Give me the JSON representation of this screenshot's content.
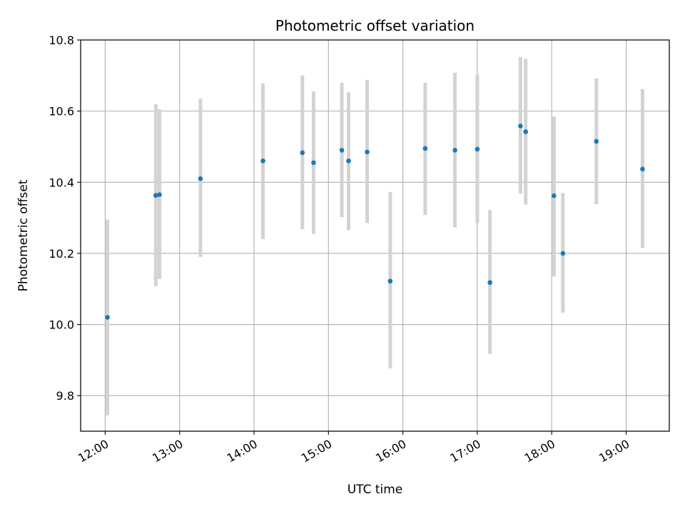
{
  "chart_data": {
    "type": "scatter",
    "title": "Photometric offset variation",
    "xlabel": "UTC time",
    "ylabel": "Photometric offset",
    "x_unit": "hours UTC",
    "xlim": [
      11.67,
      19.58
    ],
    "ylim": [
      9.7,
      10.8
    ],
    "x_ticks": [
      {
        "value": 12,
        "label": "12:00"
      },
      {
        "value": 13,
        "label": "13:00"
      },
      {
        "value": 14,
        "label": "14:00"
      },
      {
        "value": 15,
        "label": "15:00"
      },
      {
        "value": 16,
        "label": "16:00"
      },
      {
        "value": 17,
        "label": "17:00"
      },
      {
        "value": 18,
        "label": "18:00"
      },
      {
        "value": 19,
        "label": "19:00"
      }
    ],
    "y_ticks": [
      {
        "value": 9.8,
        "label": "9.8"
      },
      {
        "value": 10.0,
        "label": "10.0"
      },
      {
        "value": 10.2,
        "label": "10.2"
      },
      {
        "value": 10.4,
        "label": "10.4"
      },
      {
        "value": 10.6,
        "label": "10.6"
      },
      {
        "value": 10.8,
        "label": "10.8"
      }
    ],
    "grid": true,
    "colors": {
      "point": "#1f77b4",
      "errorbar": "#d3d3d3",
      "grid": "#b0b0b0"
    },
    "points": [
      {
        "x": 12.03,
        "y": 10.02,
        "ymin": 9.745,
        "ymax": 10.295
      },
      {
        "x": 12.68,
        "y": 10.363,
        "ymin": 10.108,
        "ymax": 10.62
      },
      {
        "x": 12.73,
        "y": 10.365,
        "ymin": 10.128,
        "ymax": 10.605
      },
      {
        "x": 13.28,
        "y": 10.41,
        "ymin": 10.19,
        "ymax": 10.635
      },
      {
        "x": 14.12,
        "y": 10.46,
        "ymin": 10.24,
        "ymax": 10.678
      },
      {
        "x": 14.65,
        "y": 10.483,
        "ymin": 10.268,
        "ymax": 10.7
      },
      {
        "x": 14.8,
        "y": 10.455,
        "ymin": 10.255,
        "ymax": 10.655
      },
      {
        "x": 15.18,
        "y": 10.49,
        "ymin": 10.302,
        "ymax": 10.68
      },
      {
        "x": 15.27,
        "y": 10.46,
        "ymin": 10.265,
        "ymax": 10.653
      },
      {
        "x": 15.52,
        "y": 10.485,
        "ymin": 10.285,
        "ymax": 10.688
      },
      {
        "x": 15.83,
        "y": 10.122,
        "ymin": 9.877,
        "ymax": 10.373
      },
      {
        "x": 16.3,
        "y": 10.495,
        "ymin": 10.308,
        "ymax": 10.68
      },
      {
        "x": 16.7,
        "y": 10.49,
        "ymin": 10.273,
        "ymax": 10.708
      },
      {
        "x": 17.0,
        "y": 10.493,
        "ymin": 10.285,
        "ymax": 10.703
      },
      {
        "x": 17.17,
        "y": 10.118,
        "ymin": 9.917,
        "ymax": 10.322
      },
      {
        "x": 17.58,
        "y": 10.558,
        "ymin": 10.368,
        "ymax": 10.752
      },
      {
        "x": 17.65,
        "y": 10.542,
        "ymin": 10.337,
        "ymax": 10.747
      },
      {
        "x": 18.03,
        "y": 10.362,
        "ymin": 10.135,
        "ymax": 10.585
      },
      {
        "x": 18.15,
        "y": 10.2,
        "ymin": 10.033,
        "ymax": 10.37
      },
      {
        "x": 18.6,
        "y": 10.515,
        "ymin": 10.338,
        "ymax": 10.692
      },
      {
        "x": 19.22,
        "y": 10.437,
        "ymin": 10.215,
        "ymax": 10.662
      }
    ]
  }
}
